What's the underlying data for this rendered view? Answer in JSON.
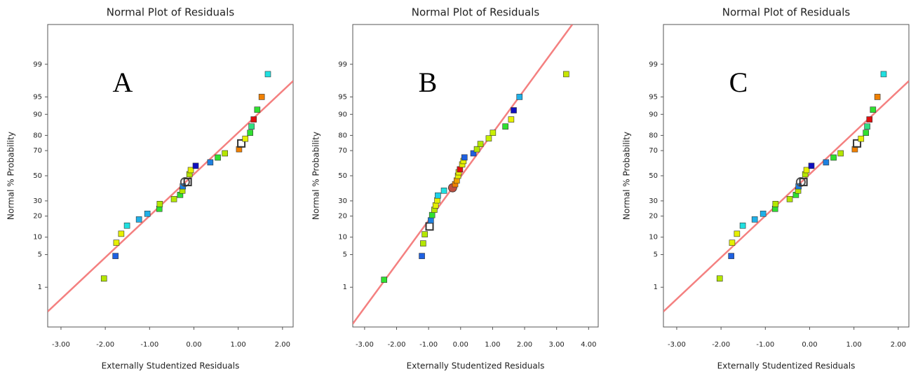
{
  "chart_data": [
    {
      "type": "scatter",
      "yscale": "normal-probability",
      "title": "Normal Plot of Residuals",
      "panel_label": "A",
      "xlabel": "Externally Studentized Residuals",
      "ylabel": "Normal % Probability",
      "xlim": [
        -3.3,
        2.24
      ],
      "ylim": [
        0.08,
        99.92
      ],
      "xticks": [
        {
          "value": -3,
          "label": "-3.00"
        },
        {
          "value": -2,
          "label": "-2.00"
        },
        {
          "value": -1,
          "label": "-1.00"
        },
        {
          "value": 0,
          "label": "0.00"
        },
        {
          "value": 1,
          "label": "1.00"
        },
        {
          "value": 2,
          "label": "2.00"
        }
      ],
      "yticks": [
        1,
        5,
        10,
        20,
        30,
        50,
        70,
        80,
        90,
        95,
        99
      ],
      "fit_line": {
        "color": "#f48080",
        "x": [
          -3.3,
          2.24
        ],
        "y": [
          0.23,
          97.6
        ]
      },
      "points": {
        "x": [
          -2.03,
          -1.77,
          -1.75,
          -1.64,
          -1.51,
          -1.24,
          -1.05,
          -0.78,
          -0.77,
          -0.45,
          -0.31,
          -0.26,
          -0.25,
          -0.2,
          -0.14,
          -0.1,
          -0.07,
          0.04,
          0.37,
          0.54,
          0.7,
          1.02,
          1.07,
          1.16,
          1.27,
          1.3,
          1.35,
          1.43,
          1.53,
          1.67
        ],
        "y": [
          1.6,
          4.7,
          8.1,
          11.3,
          14.9,
          18.1,
          21.4,
          24.5,
          27.8,
          31.3,
          34.5,
          37.8,
          41.3,
          44.8,
          44.8,
          51.2,
          54.7,
          58.2,
          61,
          64.8,
          68,
          71,
          75,
          78,
          81.5,
          84.8,
          88,
          91.6,
          95,
          98.3
        ],
        "markers": [
          "square",
          "square",
          "square",
          "square",
          "square",
          "square",
          "square",
          "square",
          "square",
          "square",
          "square",
          "square",
          "square",
          "open-circle",
          "open-square",
          "square",
          "square",
          "square",
          "square",
          "square",
          "square",
          "square",
          "open-square",
          "square",
          "square",
          "square",
          "square",
          "square",
          "square",
          "square"
        ],
        "colors": [
          "#b4e600",
          "#1e60e0",
          "#e6f000",
          "#e6f000",
          "#20e0e0",
          "#20b0e8",
          "#20b0e8",
          "#30e030",
          "#b4e600",
          "#b4e600",
          "#30e030",
          "#b4e600",
          "#1e80e0",
          "#555555",
          "#333333",
          "#b4e600",
          "#e6f000",
          "#1010c0",
          "#1e80e0",
          "#30e030",
          "#b4e600",
          "#f08000",
          "#333333",
          "#e6f000",
          "#30e030",
          "#30e080",
          "#e01010",
          "#30e030",
          "#f08000",
          "#20e0e0"
        ]
      }
    },
    {
      "type": "scatter",
      "yscale": "normal-probability",
      "title": "Normal Plot of Residuals",
      "panel_label": "B",
      "xlabel": "Externally Studentized Residuals",
      "ylabel": "Normal % Probability",
      "xlim": [
        -3.37,
        4.3
      ],
      "ylim": [
        0.08,
        99.92
      ],
      "xticks": [
        {
          "value": -3,
          "label": "-3.00"
        },
        {
          "value": -2,
          "label": "-2.00"
        },
        {
          "value": -1,
          "label": "-1.00"
        },
        {
          "value": 0,
          "label": "0.00"
        },
        {
          "value": 1,
          "label": "1.00"
        },
        {
          "value": 2,
          "label": "2.00"
        },
        {
          "value": 3,
          "label": "3.00"
        },
        {
          "value": 4,
          "label": "4.00"
        }
      ],
      "yticks": [
        1,
        5,
        10,
        20,
        30,
        50,
        70,
        80,
        90,
        95,
        99
      ],
      "fit_line": {
        "color": "#f48080",
        "x": [
          -3.37,
          3.49
        ],
        "y": [
          0.1,
          99.92
        ]
      },
      "points": {
        "x": [
          -2.39,
          -1.21,
          -1.17,
          -1.12,
          -0.97,
          -0.93,
          -0.89,
          -0.82,
          -0.78,
          -0.73,
          -0.71,
          -0.52,
          -0.25,
          -0.17,
          -0.12,
          -0.08,
          -0.06,
          -0.02,
          0.05,
          0.09,
          0.12,
          0.4,
          0.51,
          0.62,
          0.88,
          1.01,
          1.4,
          1.58,
          1.66,
          1.84,
          3.3
        ],
        "y": [
          1.5,
          4.7,
          7.9,
          11.1,
          14.5,
          17.6,
          20.6,
          23.9,
          26.8,
          30.4,
          34,
          37.8,
          40.1,
          43,
          46,
          50,
          52.9,
          55.3,
          59.3,
          62.1,
          64.9,
          68,
          71,
          74.6,
          78.2,
          81.5,
          84.8,
          88,
          91.4,
          95,
          98.3
        ],
        "markers": [
          "square",
          "square",
          "square",
          "square",
          "open-square",
          "square",
          "square",
          "square",
          "square",
          "square",
          "square",
          "square",
          "circle",
          "square",
          "square",
          "square",
          "square",
          "square",
          "square",
          "square",
          "square",
          "square",
          "square",
          "square",
          "square",
          "square",
          "square",
          "square",
          "square",
          "square",
          "square"
        ],
        "colors": [
          "#30e030",
          "#1e60e0",
          "#b4e600",
          "#b4e600",
          "#333333",
          "#1e80e0",
          "#30e030",
          "#b4e600",
          "#e6f000",
          "#e6f000",
          "#20d0e8",
          "#20e0e0",
          "#c05040",
          "#f08000",
          "#f0a000",
          "#e6f000",
          "#e6f000",
          "#e01010",
          "#e6f000",
          "#e6f000",
          "#1e60e0",
          "#1e60e0",
          "#b4e600",
          "#b4e600",
          "#c8f000",
          "#c8f000",
          "#30e030",
          "#e6f000",
          "#1010c0",
          "#20b0e8",
          "#c8e600"
        ]
      }
    },
    {
      "type": "scatter",
      "yscale": "normal-probability",
      "title": "Normal Plot of Residuals",
      "panel_label": "C",
      "xlabel": "Externally Studentized Residuals",
      "ylabel": "Normal % Probability",
      "xlim": [
        -3.3,
        2.24
      ],
      "ylim": [
        0.08,
        99.92
      ],
      "xticks": [
        {
          "value": -3,
          "label": "-3.00"
        },
        {
          "value": -2,
          "label": "-2.00"
        },
        {
          "value": -1,
          "label": "-1.00"
        },
        {
          "value": 0,
          "label": "0.00"
        },
        {
          "value": 1,
          "label": "1.00"
        },
        {
          "value": 2,
          "label": "2.00"
        }
      ],
      "yticks": [
        1,
        5,
        10,
        20,
        30,
        50,
        70,
        80,
        90,
        95,
        99
      ],
      "fit_line": {
        "color": "#f48080",
        "x": [
          -3.3,
          2.24
        ],
        "y": [
          0.23,
          97.6
        ]
      },
      "points": {
        "x": [
          -2.03,
          -1.77,
          -1.75,
          -1.64,
          -1.51,
          -1.24,
          -1.05,
          -0.78,
          -0.77,
          -0.45,
          -0.31,
          -0.26,
          -0.25,
          -0.2,
          -0.14,
          -0.1,
          -0.07,
          0.04,
          0.37,
          0.54,
          0.7,
          1.02,
          1.07,
          1.16,
          1.27,
          1.3,
          1.35,
          1.43,
          1.53,
          1.67
        ],
        "y": [
          1.6,
          4.7,
          8.1,
          11.3,
          14.9,
          18.1,
          21.4,
          24.5,
          27.8,
          31.3,
          34.5,
          37.8,
          41.3,
          44.8,
          44.8,
          51.2,
          54.7,
          58.2,
          61,
          64.8,
          68,
          71,
          75,
          78,
          81.5,
          84.8,
          88,
          91.6,
          95,
          98.3
        ],
        "markers": [
          "square",
          "square",
          "square",
          "square",
          "square",
          "square",
          "square",
          "square",
          "square",
          "square",
          "square",
          "square",
          "square",
          "open-circle",
          "open-square",
          "square",
          "square",
          "square",
          "square",
          "square",
          "square",
          "square",
          "open-square",
          "square",
          "square",
          "square",
          "square",
          "square",
          "square",
          "square"
        ],
        "colors": [
          "#b4e600",
          "#1e60e0",
          "#e6f000",
          "#e6f000",
          "#20e0e0",
          "#20b0e8",
          "#20b0e8",
          "#30e030",
          "#b4e600",
          "#b4e600",
          "#30e030",
          "#b4e600",
          "#1e80e0",
          "#555555",
          "#333333",
          "#b4e600",
          "#e6f000",
          "#1010c0",
          "#1e80e0",
          "#30e030",
          "#b4e600",
          "#f08000",
          "#333333",
          "#e6f000",
          "#30e030",
          "#30e080",
          "#e01010",
          "#30e030",
          "#f08000",
          "#20e0e0"
        ]
      }
    }
  ]
}
